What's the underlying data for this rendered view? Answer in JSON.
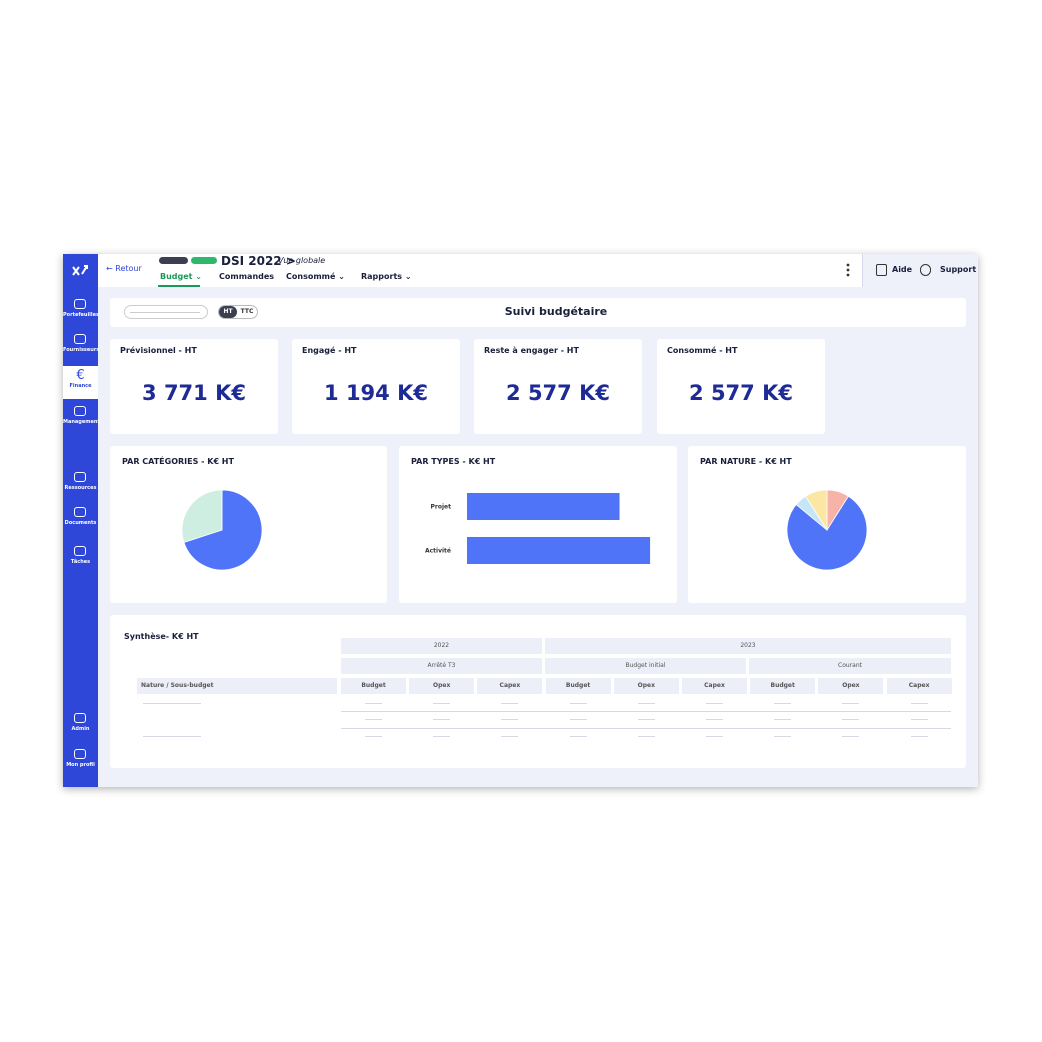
{
  "sidebar": {
    "items": [
      {
        "label": "Portefeuilles"
      },
      {
        "label": "Fournisseurs"
      },
      {
        "label": "Finance",
        "icon": "€"
      },
      {
        "label": "Management"
      },
      {
        "label": "Ressources"
      },
      {
        "label": "Documents"
      },
      {
        "label": "Tâches"
      },
      {
        "label": "Admin"
      },
      {
        "label": "Mon profil"
      }
    ]
  },
  "header": {
    "back": "← Retour",
    "title": "DSI 2022 >",
    "subtitle": "Vue globale",
    "tabs": [
      "Budget",
      "Commandes",
      "Consommé",
      "Rapports"
    ],
    "actions": [
      "Aide",
      "Support"
    ]
  },
  "toolbar": {
    "toggle": [
      "HT",
      "TTC"
    ],
    "title": "Suivi budgétaire"
  },
  "kpis": [
    {
      "label": "Prévisionnel - HT",
      "value": "3 771 K€"
    },
    {
      "label": "Engagé - HT",
      "value": "1 194 K€"
    },
    {
      "label": "Reste à engager - HT",
      "value": "2 577 K€"
    },
    {
      "label": "Consommé - HT",
      "value": "2 577 K€"
    }
  ],
  "chart_data": [
    {
      "type": "pie",
      "title": "PAR CATÉGORIES  - K€ HT",
      "values": [
        70,
        30
      ],
      "colors": [
        "#4f74f7",
        "#cdeee0"
      ]
    },
    {
      "type": "bar",
      "title": "PAR TYPES  - K€ HT",
      "categories": [
        "Projet",
        "Activité"
      ],
      "values": [
        1714,
        2057
      ],
      "color": "#4f74f7"
    },
    {
      "type": "pie",
      "title": "PAR NATURE - K€ HT",
      "values": [
        9,
        77,
        5,
        9
      ],
      "colors": [
        "#f6b3a8",
        "#4f74f7",
        "#c5e6f7",
        "#fbe6a4"
      ]
    }
  ],
  "table": {
    "title": "Synthèse- K€ HT",
    "years": [
      "2022",
      "2023"
    ],
    "groups": [
      "Arrêté T3",
      "Budget initial",
      "Courant"
    ],
    "row_header": "Nature / Sous-budget",
    "columns": [
      "Budget",
      "Opex",
      "Capex",
      "Budget",
      "Opex",
      "Capex",
      "Budget",
      "Opex",
      "Capex"
    ]
  }
}
